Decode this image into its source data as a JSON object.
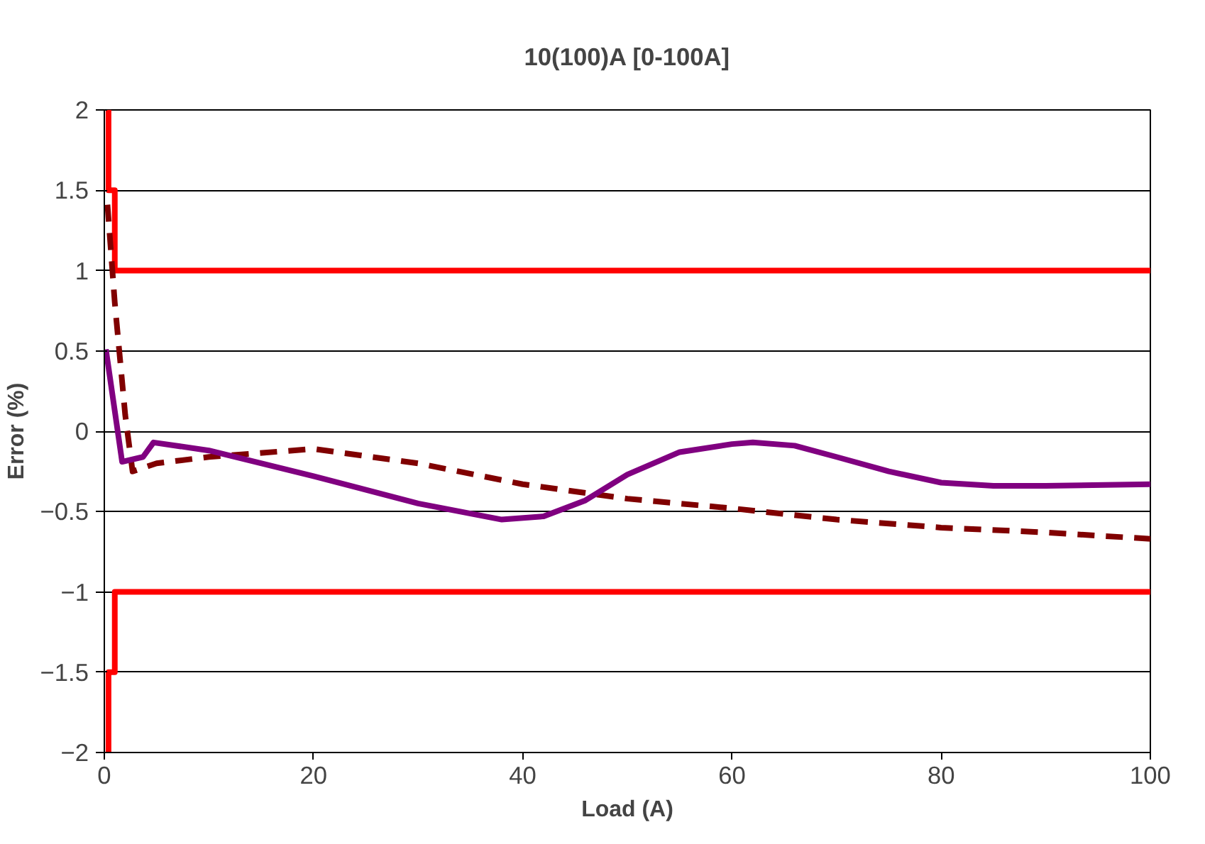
{
  "chart_data": {
    "type": "line",
    "title": "10(100)A [0-100A]",
    "xlabel": "Load (A)",
    "ylabel": "Error (%)",
    "xlim": [
      0,
      100
    ],
    "xticks": [
      0,
      20,
      40,
      60,
      80,
      100
    ],
    "ylim": [
      -2,
      2
    ],
    "yticks": [
      -2,
      -1.5,
      -1,
      -0.5,
      0,
      0.5,
      1,
      1.5,
      2
    ],
    "grid": "y",
    "marker": "none",
    "series": [
      {
        "color": "#ff0000",
        "line_style": "solid",
        "x": [
          0.4,
          0.4,
          1,
          1,
          100
        ],
        "values": [
          2,
          1.5,
          1.5,
          1,
          1
        ]
      },
      {
        "color": "#ff0000",
        "line_style": "solid",
        "x": [
          0.4,
          0.4,
          1,
          1,
          100
        ],
        "values": [
          -2,
          -1.5,
          -1.5,
          -1,
          -1
        ]
      },
      {
        "color": "#800000",
        "line_style": "dashed",
        "x": [
          0.3,
          1,
          2,
          2.7,
          5,
          10,
          20,
          30,
          40,
          50,
          60,
          70,
          80,
          90,
          100
        ],
        "values": [
          1.41,
          0.8,
          0.1,
          -0.25,
          -0.2,
          -0.16,
          -0.11,
          -0.2,
          -0.33,
          -0.42,
          -0.48,
          -0.55,
          -0.6,
          -0.63,
          -0.67
        ]
      },
      {
        "color": "#800080",
        "line_style": "solid",
        "x": [
          0.15,
          1.7,
          3.7,
          4.7,
          10,
          20,
          30,
          38,
          42,
          46,
          50,
          55,
          60,
          62,
          66,
          70,
          75,
          80,
          85,
          90,
          100
        ],
        "values": [
          0.51,
          -0.19,
          -0.16,
          -0.07,
          -0.12,
          -0.28,
          -0.45,
          -0.55,
          -0.53,
          -0.43,
          -0.27,
          -0.13,
          -0.08,
          -0.07,
          -0.09,
          -0.16,
          -0.25,
          -0.32,
          -0.34,
          -0.34,
          -0.33
        ]
      }
    ]
  }
}
